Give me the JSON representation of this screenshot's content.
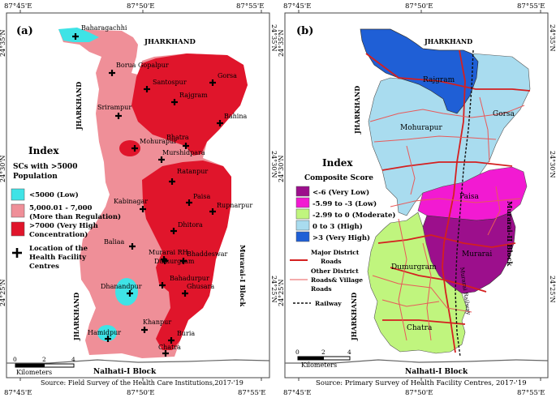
{
  "colors": {
    "low": "#3fe3e6",
    "moderate_pink": "#ef8f98",
    "very_high_red": "#e0152b",
    "very_low": "#9c0f8c",
    "low_magenta": "#f21ad2",
    "moderate_green": "#c0f57e",
    "high_lightblue": "#a9dcef",
    "very_high_blue": "#1f5fd6",
    "road_major": "#d42020",
    "road_other": "#e85a5a"
  },
  "left": {
    "panel_label": "(a)",
    "coords_top": [
      "87°45'E",
      "87°50'E",
      "87°55'E"
    ],
    "coords_bottom": [
      "87°45'E",
      "87°50'E",
      "87°55'E"
    ],
    "coords_left": [
      "24°35'N",
      "24°30'N",
      "24°25'N"
    ],
    "coords_right": [
      "24°35'N",
      "24°30'N",
      "24°25'N"
    ],
    "state_top": "JHARKHAND",
    "state_left_upper": "JHARKHAND",
    "state_left_lower": "JHARKHAND",
    "block_right": "Murarai-I Block",
    "block_bottom": "Nalhati-I Block",
    "places": [
      "Baharagachhi",
      "Borua Gopalpur",
      "Santospur",
      "Gorsa",
      "Rajgram",
      "Srirampur",
      "Bahina",
      "Mohurapur",
      "Bhatra",
      "Murshidpara",
      "Ratanpur",
      "Kabinagar",
      "Paisa",
      "Rupnarpur",
      "Dhitora",
      "Baliaa",
      "Dumurgram",
      "Murarai RH",
      "Bhaddeswar",
      "Bahadurpur",
      "Dhanandpur",
      "Ghusara",
      "Hamidpur",
      "Khanpur",
      "Buria",
      "Chatra"
    ],
    "legend": {
      "title": "Index",
      "subtitle": "SCs with >5000 Population",
      "items": [
        {
          "label": "<5000 (Low)",
          "color_key": "low"
        },
        {
          "label": "5,000.01 - 7,000 (More than Regulation)",
          "color_key": "moderate_pink"
        },
        {
          "label": ">7000 (Very High Concentration)",
          "color_key": "very_high_red"
        }
      ],
      "hf_label": "Location of the Health Facility Centres"
    },
    "scale": {
      "ticks": [
        "0",
        "2",
        "4"
      ],
      "unit": "Kilometers"
    },
    "source": "Source: Field Survey of the Health Care Institutions,2017-'19"
  },
  "right": {
    "panel_label": "(b)",
    "coords_top": [
      "87°45'E",
      "87°50'E",
      "87°55'E"
    ],
    "coords_bottom": [
      "87°45'E",
      "87°50'E",
      "87°55'E"
    ],
    "coords_left": [
      "24°35'N",
      "24°30'N",
      "24°25'N"
    ],
    "coords_right": [
      "24°35'N",
      "24°30'N",
      "24°25'N"
    ],
    "state_top": "JHARKHAND",
    "state_left_upper": "JHARKHAND",
    "state_left_lower": "JHARKHAND",
    "block_right": "Murarai-II Block",
    "block_bottom": "Nalhati-I Block",
    "regions": [
      "Rajgram",
      "Mohurapur",
      "Gorsa",
      "Paisa",
      "Murarai",
      "Dumurgram",
      "Chatra",
      "Murarai Railway"
    ],
    "legend": {
      "title": "Index",
      "subtitle": "Composite Score",
      "items": [
        {
          "label": "<-6 (Very Low)",
          "color_key": "very_low"
        },
        {
          "label": "-5.99 to -3 (Low)",
          "color_key": "low_magenta"
        },
        {
          "label": "-2.99 to 0 (Moderate)",
          "color_key": "moderate_green"
        },
        {
          "label": "0 to 3 (High)",
          "color_key": "high_lightblue"
        },
        {
          "label": ">3 (Very High)",
          "color_key": "very_high_blue"
        }
      ],
      "roads": [
        {
          "label": "Major District Roads"
        },
        {
          "label": "Other District Roads& Village Roads"
        },
        {
          "label": "Railway"
        }
      ]
    },
    "scale": {
      "ticks": [
        "0",
        "2",
        "4"
      ],
      "unit": "Kilometers"
    },
    "source": "Source: Primary Survey of Health Facility Centres, 2017-'19"
  }
}
